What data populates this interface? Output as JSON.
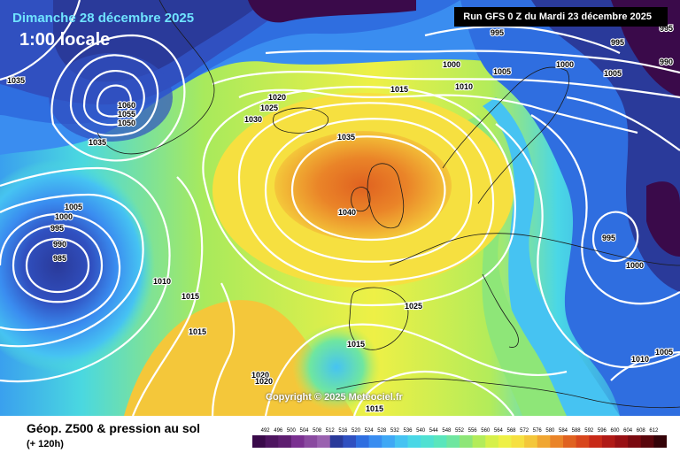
{
  "header": {
    "date": "Dimanche 28 décembre 2025",
    "local_time": "1:00 locale",
    "run_info": "Run GFS 0 Z du Mardi 23 décembre 2025"
  },
  "copyright": "Copyright © 2025 Meteociel.fr",
  "footer": {
    "parameter_title": "Géop. Z500 & pression au sol",
    "lead_time": "(+ 120h)"
  },
  "colors": {
    "scale_colors": [
      "#3a0a4a",
      "#4e1560",
      "#5e1e70",
      "#7a3090",
      "#8a4aa0",
      "#9a62b0",
      "#2a3a9a",
      "#3050c0",
      "#2f6ee0",
      "#3a8df0",
      "#40a8f5",
      "#46c3f2",
      "#4ad7e6",
      "#50e1d2",
      "#5ae6bc",
      "#6fe6a0",
      "#8ee678",
      "#b3ec5a",
      "#d6f04a",
      "#eef046",
      "#f6e040",
      "#f4c73a",
      "#f0a632",
      "#ea8428",
      "#e06220",
      "#d8461c",
      "#c82a18",
      "#b01a16",
      "#981014",
      "#7a0a10",
      "#5a060c",
      "#340308"
    ]
  },
  "scale": {
    "labels": [
      "492",
      "496",
      "500",
      "504",
      "508",
      "512",
      "516",
      "520",
      "524",
      "528",
      "532",
      "536",
      "540",
      "544",
      "548",
      "552",
      "556",
      "560",
      "564",
      "568",
      "572",
      "576",
      "580",
      "584",
      "588",
      "592",
      "596",
      "600",
      "604",
      "608",
      "612"
    ]
  },
  "isobar_labels": [
    {
      "text": "1035"
    },
    {
      "text": "1060"
    },
    {
      "text": "1055"
    },
    {
      "text": "1050"
    },
    {
      "text": "1035"
    },
    {
      "text": "1005"
    },
    {
      "text": "1000"
    },
    {
      "text": "995"
    },
    {
      "text": "990"
    },
    {
      "text": "985"
    },
    {
      "text": "1010"
    },
    {
      "text": "1015"
    },
    {
      "text": "1015"
    },
    {
      "text": "1020"
    },
    {
      "text": "1020"
    },
    {
      "text": "1020"
    },
    {
      "text": "1025"
    },
    {
      "text": "1030"
    },
    {
      "text": "1035"
    },
    {
      "text": "1040"
    },
    {
      "text": "1025"
    },
    {
      "text": "1015"
    },
    {
      "text": "1015"
    },
    {
      "text": "1015"
    },
    {
      "text": "1010"
    },
    {
      "text": "1005"
    },
    {
      "text": "1000"
    },
    {
      "text": "995"
    },
    {
      "text": "1000"
    },
    {
      "text": "1005"
    },
    {
      "text": "995"
    },
    {
      "text": "990"
    },
    {
      "text": "995"
    },
    {
      "text": "990"
    },
    {
      "text": "1000"
    },
    {
      "text": "995"
    },
    {
      "text": "1000"
    },
    {
      "text": "1010"
    },
    {
      "text": "1005"
    }
  ]
}
